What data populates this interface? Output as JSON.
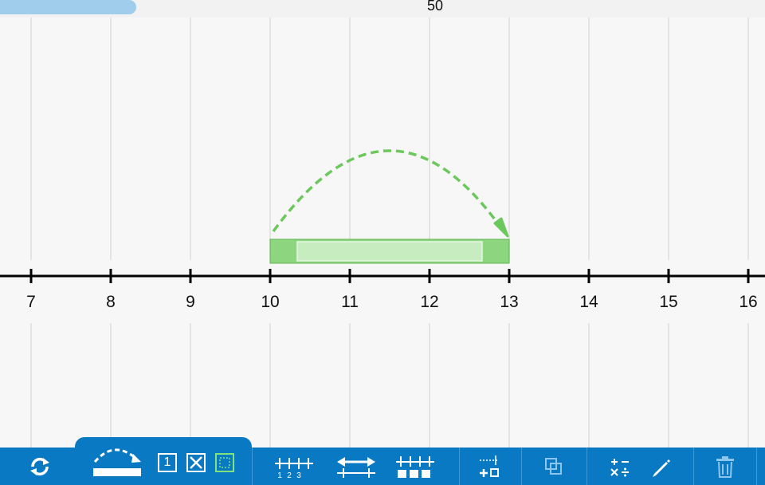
{
  "scroll": {
    "zoom_value": "50"
  },
  "number_line": {
    "tick_labels": [
      "7",
      "8",
      "9",
      "10",
      "11",
      "12",
      "13",
      "14",
      "15",
      "16"
    ],
    "ticks": [
      7,
      8,
      9,
      10,
      11,
      12,
      13,
      14,
      15,
      16
    ]
  },
  "jump": {
    "from": 10,
    "to": 13
  },
  "bar": {
    "start": 10,
    "end": 13,
    "fill": "#8dd57f",
    "inner_fill": "#c6ecc0",
    "stroke": "#5fb550"
  },
  "colors": {
    "accent": "#0a79c4",
    "jump_arrow": "#6cc85c",
    "grid": "#dddddd",
    "axis": "#000000"
  },
  "toolbar": {
    "buttons": [
      {
        "name": "reset-button",
        "icon": "rotate-arrows-icon"
      },
      {
        "name": "jump-tool-button",
        "icon": "jump-arc-icon"
      },
      {
        "name": "number-tile-button",
        "icon": "number-one-box-icon",
        "label": "1"
      },
      {
        "name": "hide-tile-button",
        "icon": "crossed-box-icon"
      },
      {
        "name": "outline-tile-button",
        "icon": "dotted-box-icon"
      },
      {
        "name": "tick-labels-button",
        "icon": "labeled-ticks-icon",
        "labels": [
          "1",
          "2",
          "3"
        ]
      },
      {
        "name": "stretch-button",
        "icon": "double-arrow-icon"
      },
      {
        "name": "equal-parts-button",
        "icon": "segmented-bar-icon"
      },
      {
        "name": "add-label-button",
        "icon": "plus-box-ruler-icon"
      },
      {
        "name": "duplicate-button",
        "icon": "overlap-squares-icon"
      },
      {
        "name": "operations-button",
        "icon": "math-operations-icon"
      },
      {
        "name": "pencil-button",
        "icon": "pencil-icon"
      },
      {
        "name": "trash-button",
        "icon": "trash-icon"
      }
    ]
  }
}
